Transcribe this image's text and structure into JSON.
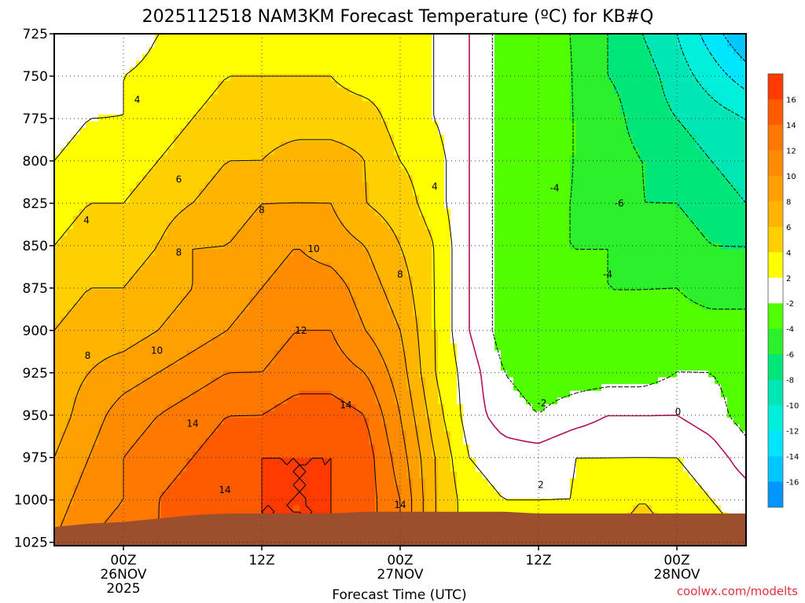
{
  "chart_data": {
    "type": "heatmap",
    "title": "2025112518 NAM3KM Forecast Temperature (ºC) for KB#Q",
    "xlabel": "Forecast Time (UTC)",
    "ylabel": "",
    "x_ticks": [
      {
        "hours": 6,
        "line1": "00Z",
        "line2": "26NOV",
        "line3": "2025"
      },
      {
        "hours": 18,
        "line1": "12Z",
        "line2": "",
        "line3": ""
      },
      {
        "hours": 30,
        "line1": "00Z",
        "line2": "27NOV",
        "line3": ""
      },
      {
        "hours": 42,
        "line1": "12Z",
        "line2": "",
        "line3": ""
      },
      {
        "hours": 54,
        "line1": "00Z",
        "line2": "28NOV",
        "line3": ""
      }
    ],
    "xlim_hours": [
      0,
      60
    ],
    "y_ticks": [
      725,
      750,
      775,
      800,
      825,
      850,
      875,
      900,
      925,
      950,
      975,
      1000,
      1025
    ],
    "ylim_hPa": [
      725,
      1027
    ],
    "colorbar": {
      "labels": [
        16,
        14,
        12,
        10,
        8,
        6,
        4,
        2,
        -2,
        -4,
        -6,
        -8,
        -10,
        -12,
        -14,
        -16
      ],
      "bins": [
        {
          "min": 16,
          "max": 18,
          "color": "#ff3a00"
        },
        {
          "min": 14,
          "max": 16,
          "color": "#ff5a00"
        },
        {
          "min": 12,
          "max": 14,
          "color": "#ff7800"
        },
        {
          "min": 10,
          "max": 12,
          "color": "#ff8c00"
        },
        {
          "min": 8,
          "max": 10,
          "color": "#ffa000"
        },
        {
          "min": 6,
          "max": 8,
          "color": "#ffb400"
        },
        {
          "min": 4,
          "max": 6,
          "color": "#ffd000"
        },
        {
          "min": 2,
          "max": 4,
          "color": "#ffff00"
        },
        {
          "min": -2,
          "max": 2,
          "color": "#ffffff"
        },
        {
          "min": -4,
          "max": -2,
          "color": "#52ff00"
        },
        {
          "min": -6,
          "max": -4,
          "color": "#2cf02c"
        },
        {
          "min": -8,
          "max": -6,
          "color": "#00e678"
        },
        {
          "min": -10,
          "max": -8,
          "color": "#00e6b4"
        },
        {
          "min": -12,
          "max": -10,
          "color": "#00f0dc"
        },
        {
          "min": -14,
          "max": -12,
          "color": "#00e6ff"
        },
        {
          "min": -16,
          "max": -14,
          "color": "#00c8ff"
        },
        {
          "min": -18,
          "max": -16,
          "color": "#0096ff"
        }
      ]
    },
    "time_hours": [
      0,
      3,
      6,
      9,
      12,
      15,
      18,
      21,
      24,
      27,
      30,
      33,
      36,
      39,
      42,
      45,
      48,
      51,
      54,
      57,
      60
    ],
    "pressure_hPa": [
      725,
      750,
      775,
      800,
      825,
      850,
      875,
      900,
      925,
      950,
      975,
      1000,
      1025
    ],
    "surface_pressure_hPa": [
      1016,
      1014,
      1013,
      1011,
      1009,
      1008,
      1008,
      1008,
      1008,
      1007,
      1007,
      1007,
      1007,
      1007,
      1008,
      1008,
      1008,
      1008,
      1008,
      1008,
      1008
    ],
    "temperature_C": [
      [
        1,
        0,
        0,
        2,
        3,
        3,
        3,
        3,
        3,
        3,
        3,
        2,
        0,
        -3,
        -4,
        -4,
        -6,
        -8,
        -10,
        -13,
        -16
      ],
      [
        0,
        1,
        2,
        3,
        3,
        4,
        4,
        4,
        4,
        3,
        3,
        2,
        0,
        -3,
        -3,
        -4,
        -6,
        -7,
        -9,
        -11,
        -13
      ],
      [
        1,
        2,
        2,
        3,
        4,
        5,
        5,
        5,
        5,
        5,
        3,
        2,
        0,
        -3,
        -3,
        -4,
        -5,
        -7,
        -8,
        -9,
        -10
      ],
      [
        2,
        3,
        3,
        4,
        5,
        6,
        6,
        7,
        7,
        6,
        4,
        3,
        0,
        -3,
        -3,
        -4,
        -5,
        -6,
        -7,
        -8,
        -9
      ],
      [
        3,
        4,
        4,
        5,
        6,
        7,
        8,
        8,
        8,
        6,
        5,
        3,
        0,
        -3,
        -4,
        -4,
        -5,
        -6,
        -6,
        -7,
        -8
      ],
      [
        4,
        5,
        5,
        6,
        8,
        8,
        9,
        10,
        9,
        8,
        6,
        4,
        0,
        -3,
        -4,
        -4,
        -4,
        -5,
        -5,
        -6,
        -6
      ],
      [
        5,
        6,
        6,
        7,
        8,
        9,
        10,
        11,
        11,
        9,
        7,
        4,
        0,
        -3,
        -4,
        -4,
        -4,
        -4,
        -4,
        -5,
        -5
      ],
      [
        6,
        7,
        7,
        8,
        9,
        10,
        11,
        12,
        12,
        10,
        8,
        4,
        0,
        -3,
        -4,
        -4,
        -4,
        -4,
        -3,
        -3,
        -3
      ],
      [
        7,
        8,
        9,
        10,
        11,
        12,
        12,
        13,
        13,
        12,
        9,
        4,
        1,
        -2,
        -3,
        -3,
        -3,
        -3,
        -2,
        -2,
        -3
      ],
      [
        7,
        9,
        11,
        12,
        13,
        14,
        14,
        15,
        15,
        14,
        10,
        5,
        1,
        -1,
        -2,
        -1,
        0,
        0,
        0,
        -1,
        -3
      ],
      [
        8,
        10,
        12,
        13,
        14,
        15,
        16,
        16,
        16,
        15,
        11,
        6,
        2,
        1,
        1,
        2,
        2,
        2,
        2,
        1,
        -1
      ],
      [
        9,
        11,
        12,
        14,
        15,
        15,
        16,
        16,
        16,
        15,
        12,
        6,
        3,
        2,
        2,
        2,
        3,
        4,
        3,
        2,
        1
      ],
      [
        10,
        12,
        13,
        14,
        15,
        16,
        16,
        16,
        16,
        15,
        12,
        6,
        3,
        3,
        3,
        3,
        4,
        5,
        4,
        3,
        2
      ]
    ],
    "contour_labels": [
      {
        "text": "4",
        "t": 7.2,
        "p": 764
      },
      {
        "text": "6",
        "t": 10.8,
        "p": 811
      },
      {
        "text": "8",
        "t": 18.0,
        "p": 829
      },
      {
        "text": "4",
        "t": 2.8,
        "p": 835
      },
      {
        "text": "8",
        "t": 10.8,
        "p": 854
      },
      {
        "text": "10",
        "t": 22.5,
        "p": 852
      },
      {
        "text": "8",
        "t": 30.0,
        "p": 867
      },
      {
        "text": "4",
        "t": 33.0,
        "p": 815
      },
      {
        "text": "12",
        "t": 21.4,
        "p": 900
      },
      {
        "text": "8",
        "t": 2.9,
        "p": 915
      },
      {
        "text": "10",
        "t": 8.9,
        "p": 912
      },
      {
        "text": "14",
        "t": 12.0,
        "p": 955
      },
      {
        "text": "14",
        "t": 25.3,
        "p": 944
      },
      {
        "text": "14",
        "t": 14.8,
        "p": 994
      },
      {
        "text": "14",
        "t": 30.0,
        "p": 1003
      },
      {
        "text": "2",
        "t": 42.2,
        "p": 991
      },
      {
        "text": "-2",
        "t": 42.3,
        "p": 943
      },
      {
        "text": "0",
        "t": 54.1,
        "p": 948
      },
      {
        "text": "-4",
        "t": 43.4,
        "p": 816
      },
      {
        "text": "-6",
        "t": 49.0,
        "p": 825
      },
      {
        "text": "-4",
        "t": 48.0,
        "p": 867
      }
    ],
    "credit": "coolwx.com/modelts",
    "grid": true,
    "legend": "colorbar-right"
  }
}
